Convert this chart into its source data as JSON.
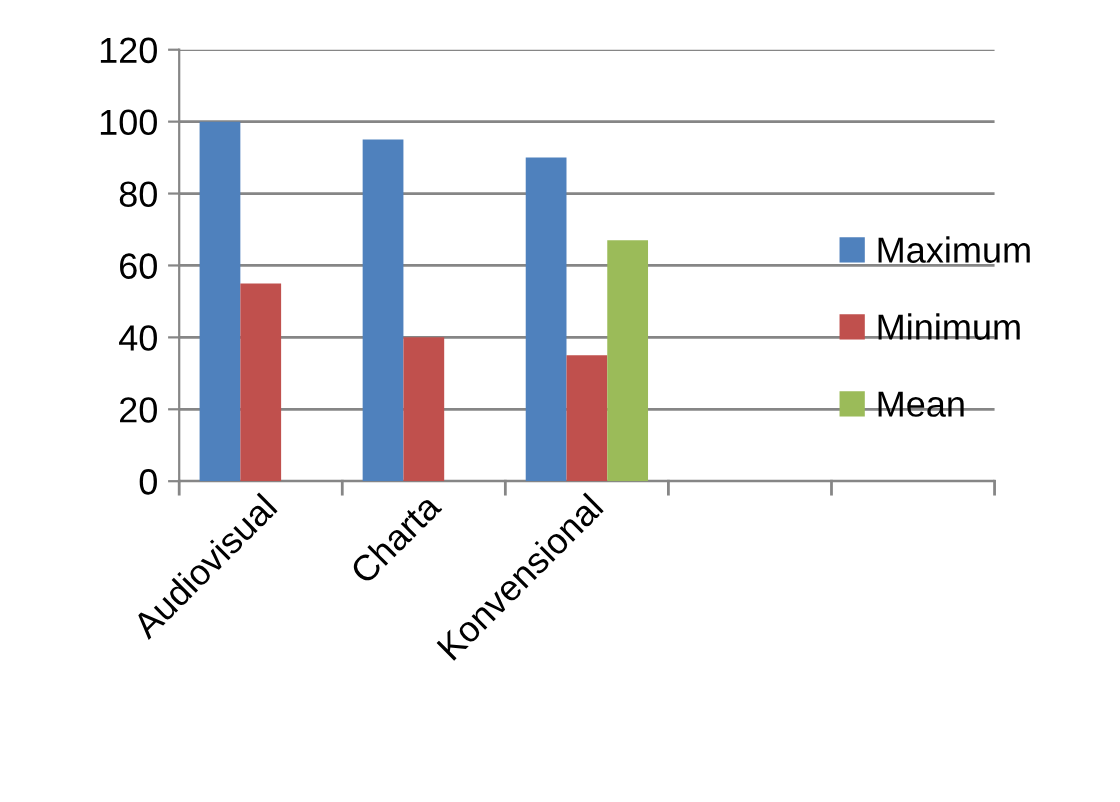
{
  "chart_data": {
    "type": "bar",
    "categories": [
      "Audiovisual",
      "Charta",
      "Konvensional",
      null,
      null
    ],
    "series": [
      {
        "name": "Maximum",
        "color": "#4f81bd",
        "values": [
          100,
          95,
          90,
          null,
          null
        ]
      },
      {
        "name": "Minimum",
        "color": "#c0504d",
        "values": [
          55,
          40,
          35,
          null,
          null
        ]
      },
      {
        "name": "Mean",
        "color": "#9bbb59",
        "values": [
          null,
          null,
          67,
          null,
          null
        ]
      }
    ],
    "ylim": [
      0,
      120
    ],
    "yticks": [
      0,
      20,
      40,
      60,
      80,
      100,
      120
    ],
    "grid": "y",
    "legend": "right"
  }
}
